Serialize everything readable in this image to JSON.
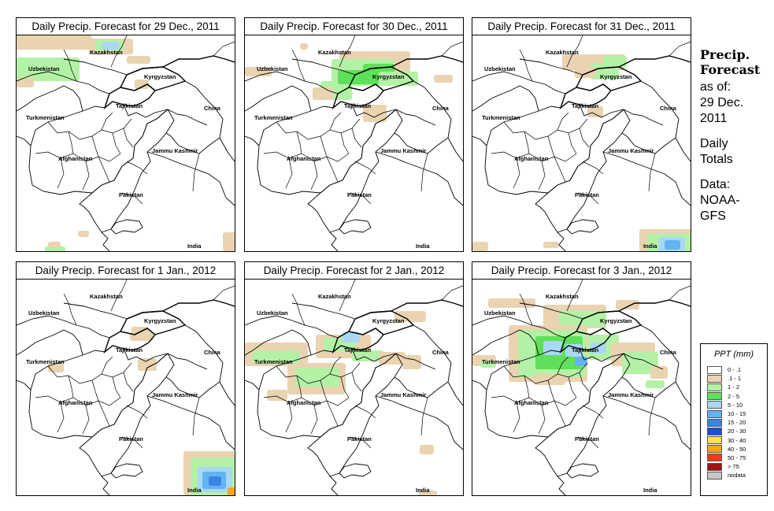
{
  "panels": [
    {
      "title": "Daily Precip. Forecast for  29 Dec., 2011"
    },
    {
      "title": "Daily Precip. Forecast for  30 Dec., 2011"
    },
    {
      "title": "Daily Precip. Forecast for  31 Dec., 2011"
    },
    {
      "title": "Daily Precip. Forecast for  1 Jan., 2012"
    },
    {
      "title": "Daily Precip. Forecast for  2 Jan., 2012"
    },
    {
      "title": "Daily Precip. Forecast for  3 Jan., 2012"
    }
  ],
  "map_labels": {
    "kazakhstan": "Kazakhstan",
    "uzbekistan": "Uzbekistan",
    "kyrgyzstan": "Kyrgyzstan",
    "tajikistan": "Tajikistan",
    "turkmenistan": "Turkmenistan",
    "china": "China",
    "jammu_kashmir": "Jammu Kashmir",
    "afghanistan": "Afghanistan",
    "pakistan": "Pakistan",
    "india": "India"
  },
  "sidebar": {
    "heading_line1": "Precip.",
    "heading_line2": "Forecast",
    "asof_line1": "as of:",
    "asof_line2": "29 Dec.",
    "asof_line3": "2011",
    "totals_line1": "Daily",
    "totals_line2": "Totals",
    "data_line1": "Data:",
    "data_line2": "NOAA-",
    "data_line3": "GFS"
  },
  "legend": {
    "title": "PPT (mm)",
    "items": [
      {
        "label": "0 - .1",
        "color": "#ffffff"
      },
      {
        "label": ".1 - 1",
        "color": "#e9d3b1"
      },
      {
        "label": "1 - 2",
        "color": "#b3f2a6"
      },
      {
        "label": "2 - 5",
        "color": "#5fe05a"
      },
      {
        "label": "5 - 10",
        "color": "#a9d8f5"
      },
      {
        "label": "10 - 15",
        "color": "#62b4f0"
      },
      {
        "label": "15 - 20",
        "color": "#3a84e8"
      },
      {
        "label": "20 - 30",
        "color": "#1c4ed6"
      },
      {
        "label": "30 - 40",
        "color": "#ffe14a"
      },
      {
        "label": "40 - 50",
        "color": "#ffa51a"
      },
      {
        "label": "50 - 75",
        "color": "#f03c14"
      },
      {
        "label": "> 75",
        "color": "#a0150f"
      },
      {
        "label": "nodata",
        "color": "#c8c8c8"
      }
    ]
  }
}
